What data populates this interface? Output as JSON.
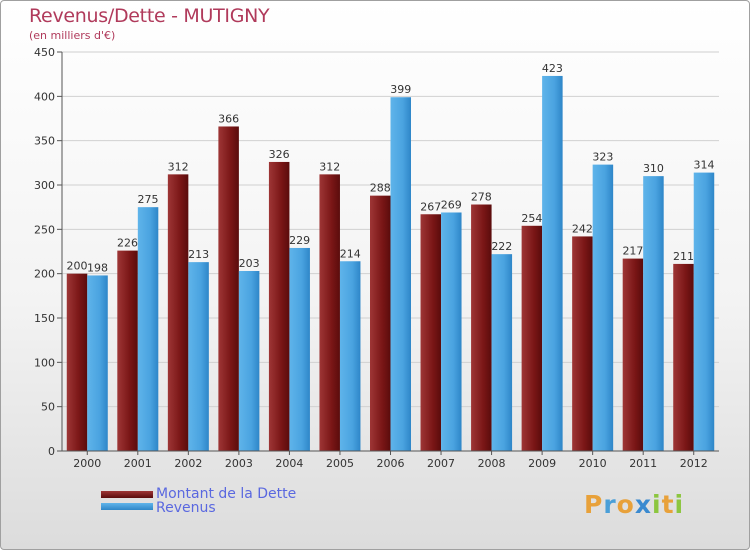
{
  "title": "Revenus/Dette - MUTIGNY",
  "subtitle": "(en milliers d'€)",
  "chart_data": {
    "type": "bar",
    "categories": [
      "2000",
      "2001",
      "2002",
      "2003",
      "2004",
      "2005",
      "2006",
      "2007",
      "2008",
      "2009",
      "2010",
      "2011",
      "2012"
    ],
    "series": [
      {
        "name": "Montant de la Dette",
        "color": "#7a1a1a",
        "values": [
          200,
          226,
          312,
          366,
          326,
          312,
          288,
          267,
          278,
          254,
          242,
          217,
          211
        ]
      },
      {
        "name": "Revenus",
        "color": "#4aa3e0",
        "values": [
          198,
          275,
          213,
          203,
          229,
          214,
          399,
          269,
          222,
          423,
          323,
          310,
          314
        ]
      }
    ],
    "ylim": [
      0,
      450
    ],
    "yticks": [
      0,
      50,
      100,
      150,
      200,
      250,
      300,
      350,
      400,
      450
    ],
    "grid": true,
    "legend_position": "bottom-left"
  },
  "legend": {
    "dette_label": "Montant de la Dette",
    "revenus_label": "Revenus"
  },
  "logo": {
    "letters": [
      "P",
      "r",
      "o",
      "x",
      "i",
      "t",
      "i"
    ],
    "colors": [
      "#e8a13a",
      "#4a9fd8",
      "#e8a13a",
      "#3a8ad0",
      "#8cc63f",
      "#e8a13a",
      "#8cc63f"
    ]
  }
}
